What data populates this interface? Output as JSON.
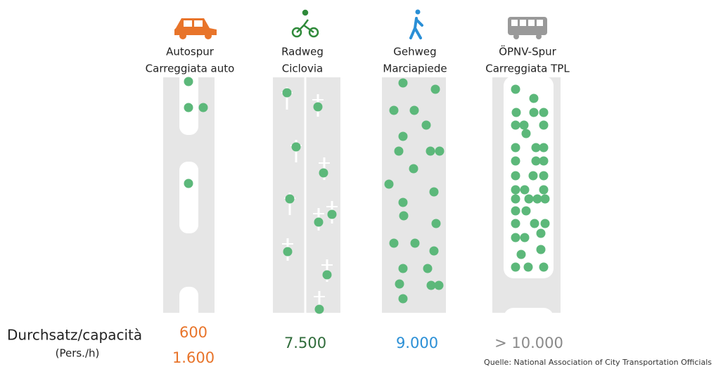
{
  "columns": [
    {
      "label_de": "Autospur",
      "label_it": "Carreggiata auto",
      "throughput": [
        "600",
        "1.600"
      ],
      "color": "#e8742a"
    },
    {
      "label_de": "Radweg",
      "label_it": "Ciclovia",
      "throughput": [
        "7.500"
      ],
      "color": "#2f6b3a"
    },
    {
      "label_de": "Gehweg",
      "label_it": "Marciapiede",
      "throughput": [
        "9.000"
      ],
      "color": "#2a8fd6"
    },
    {
      "label_de": "ÖPNV-Spur",
      "label_it": "Carreggiata TPL",
      "throughput": [
        "> 10.000"
      ],
      "color": "#8a8a8a"
    }
  ],
  "row_label": {
    "title": "Durchsatz/capacità",
    "unit": "(Pers./h)"
  },
  "source": "Quelle: National Association of City Transportation Officials"
}
